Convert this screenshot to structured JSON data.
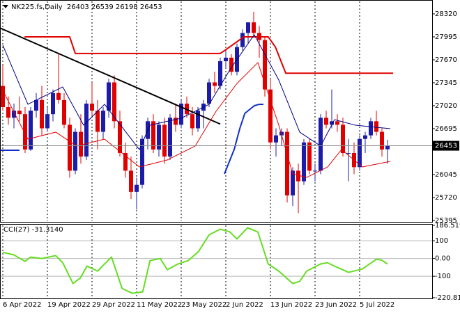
{
  "chart_data": [
    {
      "type": "candlestick",
      "title": "NK225.fs,Daily  26403 26539 26198 26453",
      "categories": [
        "6 Apr 2022",
        null,
        null,
        null,
        null,
        null,
        null,
        null,
        "19 Apr 2022",
        null,
        null,
        null,
        null,
        null,
        null,
        null,
        "29 Apr 2022",
        null,
        null,
        null,
        null,
        null,
        null,
        null,
        "11 May 2022",
        null,
        null,
        null,
        null,
        null,
        null,
        null,
        "23 May 2022",
        null,
        null,
        null,
        null,
        null,
        null,
        null,
        "2 Jun 2022",
        null,
        null,
        null,
        null,
        null,
        null,
        null,
        "13 Jun 2022",
        null,
        null,
        null,
        null,
        null,
        null,
        null,
        "23 Jun 2022",
        null,
        null,
        null,
        null,
        null,
        null,
        null,
        "5 Jul 2022",
        null,
        null,
        null,
        null,
        null
      ],
      "open": [
        27300,
        27000,
        26850,
        26950,
        26900,
        26400,
        26950,
        27100,
        26700,
        26900,
        27200,
        27100,
        26750,
        26100,
        26650,
        26300,
        27050,
        26950,
        26650,
        26950,
        27350,
        26800,
        26350,
        26100,
        25800,
        25900,
        26550,
        26800,
        26400,
        26750,
        26300,
        26850,
        26750,
        27050,
        26900,
        26700,
        26950,
        27050,
        27350,
        27300,
        27650,
        27700,
        27500,
        27850,
        28050,
        28200,
        28050,
        27950,
        27250,
        26500,
        26600,
        26650,
        25750,
        26100,
        25950,
        26500,
        26100,
        26100,
        26850,
        26750,
        26800,
        26750,
        26350,
        26350,
        26150,
        26550,
        26600,
        26800,
        26650,
        26403
      ],
      "high": [
        27600,
        27150,
        27050,
        27150,
        27000,
        27000,
        27200,
        27300,
        27000,
        27250,
        27750,
        27200,
        26850,
        26700,
        26900,
        27100,
        27350,
        27100,
        27000,
        27400,
        27450,
        26950,
        26500,
        26300,
        26000,
        26600,
        26850,
        26900,
        26800,
        26850,
        26900,
        27050,
        27100,
        27150,
        27000,
        27000,
        27100,
        27400,
        27500,
        27700,
        27800,
        27750,
        27900,
        28100,
        28200,
        28350,
        28150,
        28000,
        27400,
        26700,
        26700,
        26700,
        26150,
        26200,
        26550,
        26550,
        26200,
        26900,
        26950,
        27250,
        26900,
        26850,
        26550,
        26500,
        26600,
        26650,
        26850,
        26950,
        26700,
        26539
      ],
      "low": [
        26950,
        26750,
        26700,
        26800,
        26350,
        26380,
        26850,
        26600,
        26650,
        26800,
        27050,
        26700,
        26000,
        26050,
        26200,
        26250,
        26850,
        26400,
        26550,
        26850,
        26700,
        26300,
        26000,
        25700,
        25550,
        25850,
        26400,
        26350,
        26300,
        26200,
        26250,
        26650,
        26700,
        26850,
        26600,
        26650,
        26700,
        27000,
        27200,
        27250,
        27550,
        27450,
        27450,
        27800,
        27900,
        28000,
        27700,
        27150,
        26400,
        26300,
        26450,
        25650,
        25600,
        25500,
        25900,
        26050,
        25950,
        26050,
        26700,
        26700,
        26650,
        26300,
        25950,
        26050,
        26100,
        26350,
        26550,
        26600,
        26300,
        26198
      ],
      "close": [
        27000,
        26850,
        26950,
        26900,
        26400,
        26950,
        27100,
        26700,
        26900,
        27200,
        27100,
        26750,
        26100,
        26650,
        26300,
        27050,
        26950,
        26650,
        26950,
        27350,
        26800,
        26350,
        26100,
        25800,
        25900,
        26550,
        26800,
        26400,
        26750,
        26300,
        26850,
        26750,
        27050,
        26900,
        26700,
        26950,
        27050,
        27350,
        27300,
        27650,
        27700,
        27500,
        27850,
        28050,
        28200,
        28050,
        27950,
        27250,
        26500,
        26600,
        26650,
        25750,
        26100,
        25950,
        26500,
        26100,
        26100,
        26850,
        26750,
        26800,
        26750,
        26350,
        26350,
        26150,
        26550,
        26600,
        26800,
        26650,
        26400,
        26453
      ],
      "up_color": "#1c1ca8",
      "down_color": "#e00000",
      "xlim": [
        -0.5,
        77
      ],
      "ylim": [
        25385,
        28497
      ],
      "yticks": [
        25395,
        25720,
        26045,
        26695,
        27020,
        27345,
        27670,
        27995,
        28320
      ],
      "last_price": 26453,
      "series": [
        {
          "color": "#000000",
          "width": 2,
          "x": [
            -0.5,
            39
          ],
          "values": [
            28120,
            26760
          ]
        },
        {
          "color": "#e00000",
          "width": 2,
          "x": [
            3.9,
            12,
            13,
            39,
            39.75,
            43.25,
            47.6,
            48.9,
            50.75,
            70
          ],
          "values": [
            27995,
            27995,
            27760,
            27760,
            27800,
            27995,
            27995,
            27850,
            27480,
            27480
          ]
        },
        {
          "color": "#1030c8",
          "width": 2,
          "x": [
            -0.5,
            3,
            20,
            39.75,
            41.5,
            42.5,
            43.4,
            45.1,
            46,
            46.75
          ],
          "values": [
            26390,
            26390,
            null,
            26055,
            26400,
            26695,
            26910,
            27020,
            27040,
            27040
          ]
        },
        {
          "color": "#000080",
          "width": 1,
          "x": [
            0,
            4.5,
            10.75,
            14.5,
            18.25,
            24.5,
            26.4,
            32,
            37,
            40.75,
            45.1,
            49.5,
            53.25,
            57,
            59.5,
            63.25,
            69.5
          ],
          "values": [
            27877,
            27040,
            27286,
            26744,
            27040,
            26399,
            26744,
            26843,
            27040,
            27532,
            28025,
            27384,
            26646,
            26449,
            26823,
            26744,
            26695
          ]
        },
        {
          "color": "#e00000",
          "width": 1,
          "x": [
            0,
            4.5,
            9.5,
            13.25,
            18.25,
            24.5,
            29.5,
            34.5,
            38.25,
            42,
            45.75,
            49.5,
            52,
            54.5,
            58.25,
            60.75,
            64.5,
            69.5
          ],
          "values": [
            27237,
            26547,
            26646,
            26449,
            26547,
            26153,
            26252,
            26449,
            26941,
            27335,
            27631,
            26744,
            26055,
            26005,
            26153,
            26399,
            26153,
            26232
          ]
        }
      ]
    },
    {
      "type": "line",
      "title": "CCI(27) -31.3140",
      "xlim": [
        -0.5,
        77
      ],
      "ylim": [
        -220.811,
        186.5198
      ],
      "yticks": [
        -220.811,
        -100,
        {
          "value": 0,
          "label": "0.00"
        },
        100,
        186.5198
      ],
      "series": [
        {
          "color": "#66dd22",
          "width": 2,
          "x": [
            0,
            2,
            4,
            5,
            7,
            9.5,
            10.75,
            12.6,
            13.9,
            15.1,
            17,
            18.25,
            19.5,
            21.4,
            23.25,
            25.1,
            26.4,
            28.25,
            29.5,
            31.4,
            33.25,
            35.1,
            37,
            39,
            40.75,
            42,
            43.9,
            45.75,
            47.6,
            49.5,
            52,
            53.25,
            54.5,
            57,
            58.25,
            59.5,
            62,
            64.5,
            67,
            68,
            69
          ],
          "values": [
            35,
            20,
            -16,
            8,
            0,
            16,
            -24,
            -141,
            -110,
            -43,
            -71,
            -31,
            8,
            -169,
            -196,
            -188,
            -12,
            0,
            -63,
            -31,
            -12,
            39,
            133,
            165,
            149,
            110,
            173,
            149,
            -31,
            -71,
            -141,
            -129,
            -71,
            -31,
            -24,
            -43,
            -78,
            -59,
            -4,
            -10,
            -31.314
          ]
        }
      ]
    }
  ]
}
